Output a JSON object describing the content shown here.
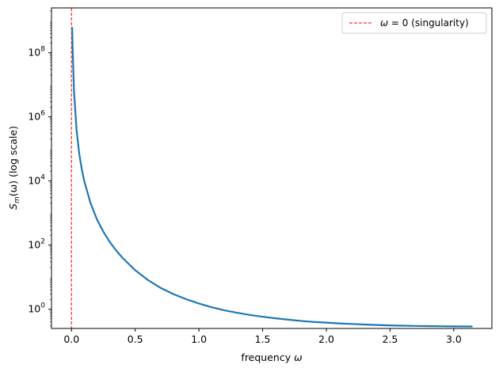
{
  "chart_data": {
    "type": "line",
    "xlabel_prefix": "frequency ",
    "xlabel_symbol": "ω",
    "ylabel_S": "S",
    "ylabel_sub": "m",
    "ylabel_rest": "(ω) (log scale)",
    "y_scale": "log",
    "xlim": [
      -0.157,
      3.299
    ],
    "ylim": [
      0.25,
      2500000000
    ],
    "x_ticks": [
      0.0,
      0.5,
      1.0,
      1.5,
      2.0,
      2.5,
      3.0
    ],
    "x_tick_labels": [
      "0.0",
      "0.5",
      "1.0",
      "1.5",
      "2.0",
      "2.5",
      "3.0"
    ],
    "y_ticks": [
      1,
      100,
      10000,
      1000000,
      100000000
    ],
    "y_tick_bases": [
      "10",
      "10",
      "10",
      "10",
      "10"
    ],
    "y_tick_exponents": [
      "0",
      "2",
      "4",
      "6",
      "8"
    ],
    "grid": false,
    "legend_position": "top-right",
    "series": [
      {
        "color": "#1f77b4",
        "x": [
          0.005,
          0.01,
          0.02,
          0.04,
          0.06,
          0.08,
          0.1,
          0.15,
          0.2,
          0.25,
          0.3,
          0.35,
          0.4,
          0.5,
          0.6,
          0.7,
          0.8,
          0.9,
          1.0,
          1.1,
          1.2,
          1.3,
          1.4,
          1.5,
          1.6,
          1.7,
          1.8,
          1.9,
          2.0,
          2.1,
          2.2,
          2.3,
          2.4,
          2.5,
          2.6,
          2.7,
          2.8,
          2.9,
          3.0,
          3.1416
        ],
        "y": [
          600000000,
          100000000,
          6000000,
          380000,
          75000,
          24000,
          10000,
          2000,
          630,
          260,
          125,
          68,
          40,
          16.4,
          8.1,
          4.6,
          2.95,
          2.05,
          1.5,
          1.15,
          0.92,
          0.77,
          0.66,
          0.58,
          0.52,
          0.47,
          0.43,
          0.4,
          0.38,
          0.36,
          0.345,
          0.332,
          0.32,
          0.312,
          0.305,
          0.3,
          0.296,
          0.293,
          0.29,
          0.288
        ]
      }
    ],
    "reference_line": {
      "x": 0,
      "color": "#ff0000",
      "style": "dashed",
      "legend_label_symbol": "ω",
      "legend_label_rest": " = 0 (singularity)"
    }
  }
}
